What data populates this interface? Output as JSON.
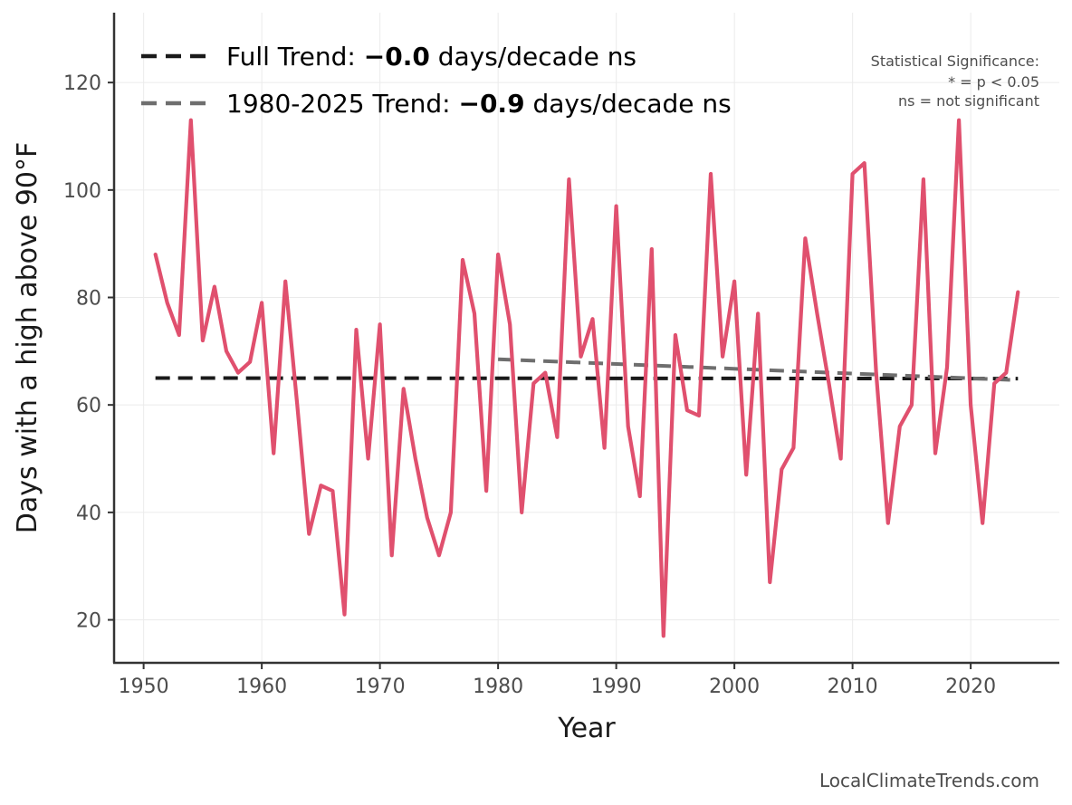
{
  "chart_data": {
    "type": "line",
    "title": "",
    "xlabel": "Year",
    "ylabel": "Days with a high above 90°F",
    "xlim": [
      1947.5,
      2027.5
    ],
    "ylim": [
      12,
      133
    ],
    "xticks": [
      1950,
      1960,
      1970,
      1980,
      1990,
      2000,
      2010,
      2020
    ],
    "yticks": [
      20,
      40,
      60,
      80,
      100,
      120
    ],
    "grid": true,
    "series": [
      {
        "name": "Days above 90°F",
        "color": "#e0506e",
        "x": [
          1951,
          1952,
          1953,
          1954,
          1955,
          1956,
          1957,
          1958,
          1959,
          1960,
          1961,
          1962,
          1963,
          1964,
          1965,
          1966,
          1967,
          1968,
          1969,
          1970,
          1971,
          1972,
          1973,
          1974,
          1975,
          1976,
          1977,
          1978,
          1979,
          1980,
          1981,
          1982,
          1983,
          1984,
          1985,
          1986,
          1987,
          1988,
          1989,
          1990,
          1991,
          1992,
          1993,
          1994,
          1995,
          1996,
          1997,
          1998,
          1999,
          2000,
          2001,
          2002,
          2003,
          2004,
          2005,
          2006,
          2007,
          2008,
          2009,
          2010,
          2011,
          2012,
          2013,
          2014,
          2015,
          2016,
          2017,
          2018,
          2019,
          2020,
          2021,
          2022,
          2023,
          2024
        ],
        "values": [
          88,
          79,
          73,
          113,
          72,
          82,
          70,
          66,
          68,
          79,
          51,
          83,
          60,
          36,
          45,
          44,
          21,
          74,
          50,
          75,
          32,
          63,
          50,
          39,
          32,
          40,
          87,
          77,
          44,
          88,
          75,
          40,
          64,
          66,
          54,
          102,
          69,
          76,
          52,
          97,
          56,
          43,
          89,
          17,
          73,
          59,
          58,
          103,
          69,
          83,
          47,
          77,
          27,
          48,
          52,
          91,
          77,
          64,
          50,
          103,
          105,
          66,
          38,
          56,
          60,
          102,
          51,
          67,
          113,
          60,
          38,
          64,
          66,
          81
        ]
      }
    ],
    "trends": [
      {
        "name": "Full Trend",
        "color": "#1a1a1a",
        "x": [
          1951,
          2024
        ],
        "y": [
          65.0,
          64.9
        ]
      },
      {
        "name": "1980-2025 Trend",
        "color": "#6e6e6e",
        "x": [
          1980,
          2024
        ],
        "y": [
          68.5,
          64.6
        ]
      }
    ]
  },
  "legend": {
    "items": [
      {
        "prefix": "Full Trend: ",
        "value": "−0.0",
        "suffix": " days/decade ns",
        "color": "#1a1a1a"
      },
      {
        "prefix": "1980-2025 Trend: ",
        "value": "−0.9",
        "suffix": " days/decade ns",
        "color": "#6e6e6e"
      }
    ]
  },
  "significance_note": {
    "line1": "Statistical Significance:",
    "line2": "* = p < 0.05",
    "line3": "ns = not significant"
  },
  "footer": "LocalClimateTrends.com"
}
